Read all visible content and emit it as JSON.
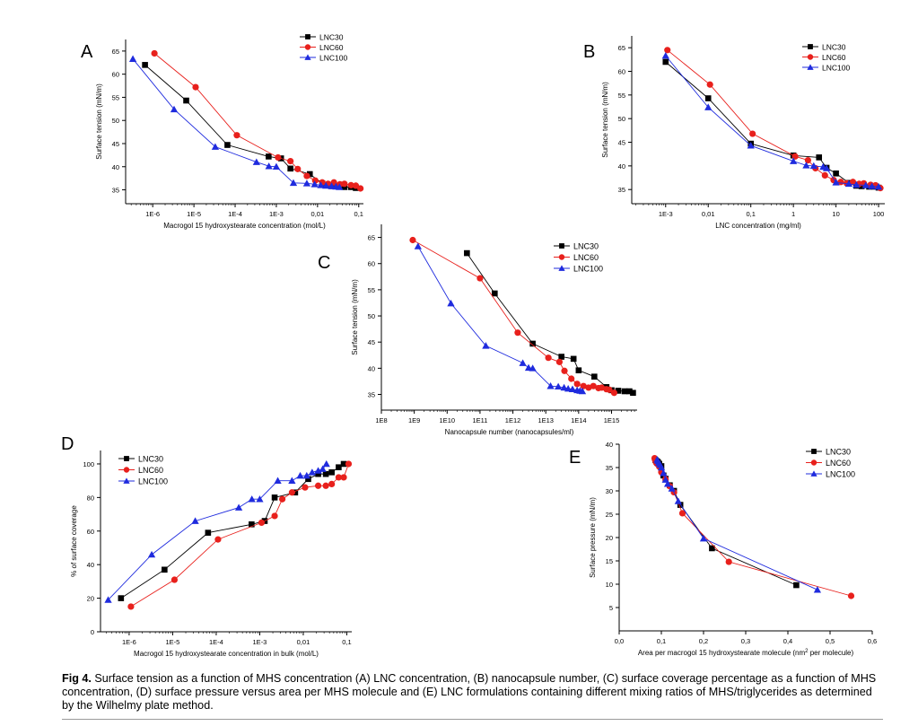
{
  "colors": {
    "LNC30": "#000000",
    "LNC60": "#e8201c",
    "LNC100": "#1f2bde"
  },
  "marker_shapes": {
    "LNC30": "square",
    "LNC60": "circle",
    "LNC100": "triangle"
  },
  "chart_data": [
    {
      "panel": "A",
      "type": "scatter-line",
      "xscale": "log",
      "xlabel": "Macrogol 15 hydroxystearate concentration (mol/L)",
      "ylabel": "Surface tension (mN/m)",
      "xticks": [
        {
          "v": 1e-06,
          "label": "1E-6"
        },
        {
          "v": 1e-05,
          "label": "1E-5"
        },
        {
          "v": 0.0001,
          "label": "1E-4"
        },
        {
          "v": 0.001,
          "label": "1E-3"
        },
        {
          "v": 0.01,
          "label": "0,01"
        },
        {
          "v": 0.1,
          "label": "0,1"
        }
      ],
      "yticks": [
        {
          "v": 35,
          "label": "35"
        },
        {
          "v": 40,
          "label": "40"
        },
        {
          "v": 45,
          "label": "45"
        },
        {
          "v": 50,
          "label": "50"
        },
        {
          "v": 55,
          "label": "55"
        },
        {
          "v": 60,
          "label": "60"
        },
        {
          "v": 65,
          "label": "65"
        }
      ],
      "legend": {
        "position": "top-right",
        "entries": [
          "LNC30",
          "LNC60",
          "LNC100"
        ]
      },
      "series": [
        {
          "name": "LNC30",
          "x": [
            6.5e-07,
            6.5e-06,
            6.5e-05,
            0.00065,
            0.0013,
            0.0022,
            0.0065,
            0.013,
            0.022,
            0.033,
            0.045,
            0.065,
            0.085
          ],
          "y": [
            62.0,
            54.3,
            44.7,
            42.2,
            41.8,
            39.6,
            38.4,
            36.4,
            35.8,
            35.7,
            35.6,
            35.6,
            35.4
          ]
        },
        {
          "name": "LNC60",
          "x": [
            1.1e-06,
            1.1e-05,
            0.00011,
            0.0011,
            0.0022,
            0.0033,
            0.0055,
            0.0088,
            0.013,
            0.018,
            0.025,
            0.035,
            0.045,
            0.065,
            0.085,
            0.11
          ],
          "y": [
            64.5,
            57.2,
            46.8,
            42.0,
            41.2,
            39.5,
            38.0,
            37.0,
            36.6,
            36.3,
            36.6,
            36.2,
            36.3,
            36.0,
            35.9,
            35.3
          ]
        },
        {
          "name": "LNC100",
          "x": [
            3.3e-07,
            3.3e-06,
            3.3e-05,
            0.00033,
            0.00066,
            0.001,
            0.0026,
            0.0055,
            0.0085,
            0.012,
            0.016,
            0.022,
            0.028,
            0.034
          ],
          "y": [
            63.3,
            52.4,
            44.3,
            41.0,
            40.1,
            40.0,
            36.5,
            36.4,
            36.2,
            36.0,
            35.9,
            35.8,
            35.7,
            35.6
          ]
        }
      ]
    },
    {
      "panel": "B",
      "type": "scatter-line",
      "xscale": "log",
      "xlabel": "LNC concentration (mg/ml)",
      "ylabel": "Surface tension (mN/m)",
      "xticks": [
        {
          "v": 0.001,
          "label": "1E-3"
        },
        {
          "v": 0.01,
          "label": "0,01"
        },
        {
          "v": 0.1,
          "label": "0,1"
        },
        {
          "v": 1,
          "label": "1"
        },
        {
          "v": 10,
          "label": "10"
        },
        {
          "v": 100,
          "label": "100"
        }
      ],
      "yticks": [
        {
          "v": 35,
          "label": "35"
        },
        {
          "v": 40,
          "label": "40"
        },
        {
          "v": 45,
          "label": "45"
        },
        {
          "v": 50,
          "label": "50"
        },
        {
          "v": 55,
          "label": "55"
        },
        {
          "v": 60,
          "label": "60"
        },
        {
          "v": 65,
          "label": "65"
        }
      ],
      "legend": {
        "position": "top-right",
        "entries": [
          "LNC30",
          "LNC60",
          "LNC100"
        ]
      },
      "series": [
        {
          "name": "LNC30",
          "x": [
            0.001,
            0.01,
            0.1,
            1,
            4,
            6,
            10,
            20,
            30,
            40,
            60,
            80,
            100
          ],
          "y": [
            62.0,
            54.3,
            44.7,
            42.2,
            41.8,
            39.6,
            38.4,
            36.4,
            35.8,
            35.7,
            35.6,
            35.6,
            35.4
          ]
        },
        {
          "name": "LNC60",
          "x": [
            0.0011,
            0.011,
            0.11,
            1.1,
            2.2,
            3.3,
            5.5,
            8.8,
            13,
            18,
            25,
            35,
            45,
            65,
            85,
            110
          ],
          "y": [
            64.5,
            57.2,
            46.8,
            42.0,
            41.2,
            39.5,
            38.0,
            37.0,
            36.6,
            36.3,
            36.6,
            36.2,
            36.3,
            36.0,
            35.9,
            35.3
          ]
        },
        {
          "name": "LNC100",
          "x": [
            0.001,
            0.01,
            0.1,
            1,
            2,
            3,
            5,
            6,
            10,
            20,
            30,
            50,
            70,
            100
          ],
          "y": [
            63.3,
            52.4,
            44.3,
            41.0,
            40.1,
            40.0,
            39.8,
            39.5,
            36.5,
            36.2,
            36.0,
            35.9,
            35.7,
            35.6
          ]
        }
      ]
    },
    {
      "panel": "C",
      "type": "scatter-line",
      "xscale": "log",
      "xlabel": "Nanocapsule number (nanocapsules/ml)",
      "ylabel": "Surface tension (mN/m)",
      "xticks": [
        {
          "v": 100000000.0,
          "label": "1E8"
        },
        {
          "v": 1000000000.0,
          "label": "1E9"
        },
        {
          "v": 10000000000.0,
          "label": "1E10"
        },
        {
          "v": 100000000000.0,
          "label": "1E11"
        },
        {
          "v": 1000000000000.0,
          "label": "1E12"
        },
        {
          "v": 10000000000000.0,
          "label": "1E13"
        },
        {
          "v": 100000000000000.0,
          "label": "1E14"
        },
        {
          "v": 1000000000000000.0,
          "label": "1E15"
        }
      ],
      "yticks": [
        {
          "v": 35,
          "label": "35"
        },
        {
          "v": 40,
          "label": "40"
        },
        {
          "v": 45,
          "label": "45"
        },
        {
          "v": 50,
          "label": "50"
        },
        {
          "v": 55,
          "label": "55"
        },
        {
          "v": 60,
          "label": "60"
        },
        {
          "v": 65,
          "label": "65"
        }
      ],
      "legend": {
        "position": "top-right",
        "entries": [
          "LNC30",
          "LNC60",
          "LNC100"
        ]
      },
      "series": [
        {
          "name": "LNC30",
          "x": [
            40000000000.0,
            280000000000.0,
            4000000000000.0,
            30000000000000.0,
            70000000000000.0,
            100000000000000.0,
            300000000000000.0,
            700000000000000.0,
            1000000000000000.0,
            1600000000000000.0,
            2500000000000000.0,
            3500000000000000.0,
            4500000000000000.0
          ],
          "y": [
            62.0,
            54.3,
            44.7,
            42.2,
            41.8,
            39.6,
            38.4,
            36.4,
            35.8,
            35.7,
            35.6,
            35.6,
            35.3
          ]
        },
        {
          "name": "LNC60",
          "x": [
            900000000.0,
            100000000000.0,
            1400000000000.0,
            12000000000000.0,
            26000000000000.0,
            37000000000000.0,
            60000000000000.0,
            90000000000000.0,
            140000000000000.0,
            200000000000000.0,
            280000000000000.0,
            400000000000000.0,
            500000000000000.0,
            700000000000000.0,
            850000000000000.0,
            1200000000000000.0
          ],
          "y": [
            64.5,
            57.2,
            46.8,
            42.0,
            41.2,
            39.5,
            38.0,
            37.0,
            36.6,
            36.3,
            36.6,
            36.2,
            36.3,
            36.0,
            35.9,
            35.3
          ]
        },
        {
          "name": "LNC100",
          "x": [
            1300000000.0,
            13000000000.0,
            150000000000.0,
            2000000000000.0,
            3000000000000.0,
            4000000000000.0,
            14000000000000.0,
            24000000000000.0,
            36000000000000.0,
            48000000000000.0,
            65000000000000.0,
            90000000000000.0,
            110000000000000.0,
            130000000000000.0
          ],
          "y": [
            63.3,
            52.4,
            44.3,
            41.0,
            40.1,
            40.0,
            36.6,
            36.5,
            36.3,
            36.1,
            36.0,
            35.8,
            35.7,
            35.6
          ]
        }
      ]
    },
    {
      "panel": "D",
      "type": "scatter-line",
      "xscale": "log",
      "xlabel": "Macrogol 15 hydroxystearate concentration in bulk (mol/L)",
      "ylabel": "% of surface coverage",
      "xticks": [
        {
          "v": 1e-06,
          "label": "1E-6"
        },
        {
          "v": 1e-05,
          "label": "1E-5"
        },
        {
          "v": 0.0001,
          "label": "1E-4"
        },
        {
          "v": 0.001,
          "label": "1E-3"
        },
        {
          "v": 0.01,
          "label": "0,01"
        },
        {
          "v": 0.1,
          "label": "0,1"
        }
      ],
      "yticks": [
        {
          "v": 0,
          "label": "0"
        },
        {
          "v": 20,
          "label": "20"
        },
        {
          "v": 40,
          "label": "40"
        },
        {
          "v": 60,
          "label": "60"
        },
        {
          "v": 80,
          "label": "80"
        },
        {
          "v": 100,
          "label": "100"
        }
      ],
      "legend": {
        "position": "top-left",
        "entries": [
          "LNC30",
          "LNC60",
          "LNC100"
        ]
      },
      "series": [
        {
          "name": "LNC30",
          "x": [
            6.5e-07,
            6.5e-06,
            6.5e-05,
            0.00065,
            0.0013,
            0.0022,
            0.0065,
            0.013,
            0.022,
            0.033,
            0.045,
            0.065,
            0.085
          ],
          "y": [
            20,
            37,
            59,
            64,
            66,
            80,
            83,
            91,
            94,
            94,
            95,
            98,
            100
          ]
        },
        {
          "name": "LNC60",
          "x": [
            1.1e-06,
            1.1e-05,
            0.00011,
            0.0011,
            0.0022,
            0.0033,
            0.0055,
            0.011,
            0.022,
            0.033,
            0.045,
            0.065,
            0.085,
            0.11
          ],
          "y": [
            15,
            31,
            55,
            65,
            69,
            79,
            83,
            86,
            87,
            87,
            88,
            92,
            92,
            100
          ]
        },
        {
          "name": "LNC100",
          "x": [
            3.3e-07,
            3.3e-06,
            3.3e-05,
            0.00033,
            0.00066,
            0.001,
            0.0026,
            0.0055,
            0.0085,
            0.012,
            0.016,
            0.022,
            0.028,
            0.034
          ],
          "y": [
            19,
            46,
            66,
            74,
            79,
            79,
            90,
            90,
            93,
            93,
            95,
            96,
            97,
            100
          ]
        }
      ]
    },
    {
      "panel": "E",
      "type": "scatter-line",
      "xscale": "linear",
      "xlabel_parts": [
        "Area per macrogol 15 hydroxystearate molecule (nm",
        "2",
        " per molecule)"
      ],
      "ylabel": "Surface pressure (mN/m)",
      "xticks": [
        {
          "v": 0,
          "label": "0,0"
        },
        {
          "v": 0.1,
          "label": "0,1"
        },
        {
          "v": 0.2,
          "label": "0,2"
        },
        {
          "v": 0.3,
          "label": "0,3"
        },
        {
          "v": 0.4,
          "label": "0,4"
        },
        {
          "v": 0.5,
          "label": "0,5"
        },
        {
          "v": 0.6,
          "label": "0,6"
        }
      ],
      "yticks": [
        {
          "v": 5,
          "label": "5"
        },
        {
          "v": 10,
          "label": "10"
        },
        {
          "v": 15,
          "label": "15"
        },
        {
          "v": 20,
          "label": "20"
        },
        {
          "v": 25,
          "label": "25"
        },
        {
          "v": 30,
          "label": "30"
        },
        {
          "v": 35,
          "label": "35"
        },
        {
          "v": 40,
          "label": "40"
        }
      ],
      "legend": {
        "position": "top-right",
        "entries": [
          "LNC30",
          "LNC60",
          "LNC100"
        ]
      },
      "series": [
        {
          "name": "LNC30",
          "x": [
            0.42,
            0.22,
            0.145,
            0.13,
            0.12,
            0.11,
            0.105,
            0.1,
            0.095,
            0.092,
            0.09,
            0.088,
            0.086
          ],
          "y": [
            9.8,
            17.7,
            27.0,
            30.0,
            31.2,
            32.6,
            33.3,
            35.3,
            35.8,
            36.1,
            36.3,
            36.4,
            36.6
          ]
        },
        {
          "name": "LNC60",
          "x": [
            0.55,
            0.26,
            0.15,
            0.13,
            0.12,
            0.11,
            0.1,
            0.095,
            0.09,
            0.088,
            0.087,
            0.086,
            0.085,
            0.084
          ],
          "y": [
            7.5,
            14.8,
            25.2,
            29.7,
            31.0,
            32.5,
            34.0,
            35.2,
            35.8,
            36.0,
            36.2,
            36.4,
            36.7,
            37.0
          ]
        },
        {
          "name": "LNC100",
          "x": [
            0.47,
            0.2,
            0.14,
            0.125,
            0.115,
            0.11,
            0.105,
            0.1,
            0.097,
            0.094,
            0.092,
            0.09
          ],
          "y": [
            8.8,
            19.8,
            27.8,
            30.5,
            31.5,
            32.4,
            33.8,
            35.0,
            35.6,
            36.0,
            36.4,
            36.7
          ]
        }
      ]
    }
  ],
  "panel_letters": {
    "A": "A",
    "B": "B",
    "C": "C",
    "D": "D",
    "E": "E"
  },
  "caption": {
    "label": "Fig 4.",
    "text": "  Surface tension as a function of MHS concentration (A) LNC concentration, (B) nanocapsule number, (C) surface coverage percentage as a function of MHS concentration, (D) surface pressure versus area per MHS molecule and (E) LNC formulations containing different mixing ratios of MHS/triglycerides as determined by the Wilhelmy plate method."
  }
}
